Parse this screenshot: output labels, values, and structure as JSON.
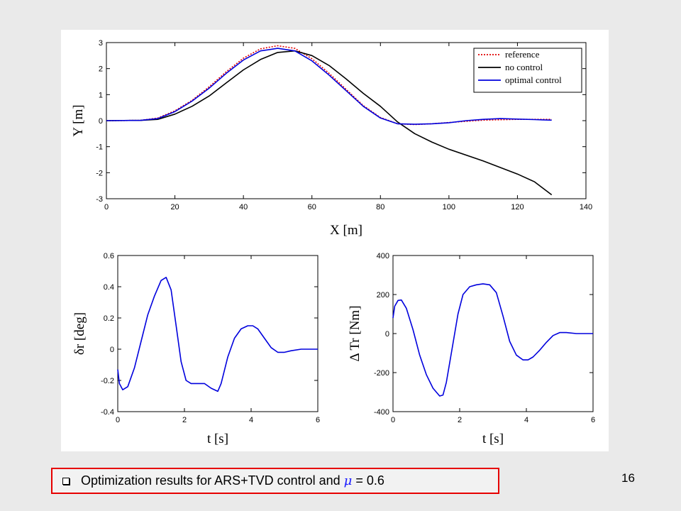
{
  "slide": {
    "caption_prefix": "Optimization results for ARS+TVD control and",
    "caption_symbol": "μ",
    "caption_suffix": "= 0.6",
    "page_number": "16"
  },
  "chart_data": [
    {
      "type": "line",
      "xlabel": "X [m]",
      "ylabel": "Y [m]",
      "xlim": [
        0,
        140
      ],
      "ylim": [
        -3,
        3
      ],
      "xticks": [
        0,
        20,
        40,
        60,
        80,
        100,
        120,
        140
      ],
      "yticks": [
        -3,
        -2,
        -1,
        0,
        1,
        2,
        3
      ],
      "legend": "top-right",
      "series": [
        {
          "name": "reference",
          "color": "#e00000",
          "style": "dotted",
          "x": [
            0,
            10,
            15,
            20,
            25,
            30,
            35,
            40,
            45,
            50,
            55,
            60,
            65,
            70,
            75,
            80,
            85,
            90,
            95,
            100,
            110,
            120,
            125,
            130
          ],
          "y": [
            0,
            0.01,
            0.1,
            0.38,
            0.78,
            1.3,
            1.88,
            2.4,
            2.76,
            2.88,
            2.78,
            2.38,
            1.82,
            1.2,
            0.58,
            0.12,
            -0.12,
            -0.15,
            -0.12,
            -0.07,
            0.02,
            0.05,
            0.05,
            0.05
          ]
        },
        {
          "name": "no control",
          "color": "#000000",
          "style": "solid",
          "x": [
            0,
            10,
            15,
            20,
            25,
            30,
            35,
            40,
            45,
            50,
            55,
            60,
            65,
            70,
            75,
            80,
            85,
            90,
            95,
            100,
            110,
            120,
            125,
            130
          ],
          "y": [
            0,
            0.01,
            0.05,
            0.25,
            0.55,
            0.95,
            1.45,
            1.95,
            2.35,
            2.62,
            2.68,
            2.5,
            2.12,
            1.6,
            1.05,
            0.55,
            -0.05,
            -0.5,
            -0.82,
            -1.1,
            -1.55,
            -2.05,
            -2.35,
            -2.85
          ]
        },
        {
          "name": "optimal control",
          "color": "#0000dd",
          "style": "solid",
          "x": [
            0,
            10,
            15,
            20,
            25,
            30,
            35,
            40,
            45,
            50,
            55,
            60,
            65,
            70,
            75,
            80,
            85,
            90,
            95,
            100,
            105,
            110,
            115,
            120,
            125,
            130
          ],
          "y": [
            0,
            0.01,
            0.08,
            0.35,
            0.75,
            1.25,
            1.82,
            2.33,
            2.68,
            2.78,
            2.68,
            2.3,
            1.75,
            1.15,
            0.55,
            0.1,
            -0.12,
            -0.14,
            -0.12,
            -0.08,
            0.0,
            0.05,
            0.08,
            0.06,
            0.04,
            0.02
          ]
        }
      ]
    },
    {
      "type": "line",
      "xlabel": "t [s]",
      "ylabel": "δr [deg]",
      "xlim": [
        0,
        6
      ],
      "ylim": [
        -0.4,
        0.6
      ],
      "xticks": [
        0,
        2,
        4,
        6
      ],
      "yticks": [
        -0.4,
        -0.2,
        0,
        0.2,
        0.4,
        0.6
      ],
      "series": [
        {
          "color": "#0000dd",
          "style": "solid",
          "x": [
            0,
            0.05,
            0.15,
            0.3,
            0.5,
            0.7,
            0.9,
            1.1,
            1.3,
            1.45,
            1.6,
            1.75,
            1.9,
            2.05,
            2.2,
            2.4,
            2.6,
            2.8,
            3.0,
            3.1,
            3.3,
            3.5,
            3.7,
            3.9,
            4.05,
            4.2,
            4.4,
            4.6,
            4.8,
            5.0,
            5.2,
            5.5,
            6.0
          ],
          "y": [
            -0.13,
            -0.22,
            -0.26,
            -0.24,
            -0.12,
            0.05,
            0.22,
            0.34,
            0.44,
            0.46,
            0.38,
            0.15,
            -0.08,
            -0.2,
            -0.22,
            -0.22,
            -0.22,
            -0.25,
            -0.27,
            -0.22,
            -0.05,
            0.07,
            0.13,
            0.15,
            0.15,
            0.13,
            0.07,
            0.01,
            -0.02,
            -0.02,
            -0.01,
            0,
            0
          ]
        }
      ]
    },
    {
      "type": "line",
      "xlabel": "t [s]",
      "ylabel": "Δ Tr [Nm]",
      "xlim": [
        0,
        6
      ],
      "ylim": [
        -400,
        400
      ],
      "xticks": [
        0,
        2,
        4,
        6
      ],
      "yticks": [
        -400,
        -200,
        0,
        200,
        400
      ],
      "series": [
        {
          "color": "#0000dd",
          "style": "solid",
          "x": [
            0,
            0.05,
            0.15,
            0.25,
            0.4,
            0.6,
            0.8,
            1.0,
            1.2,
            1.4,
            1.5,
            1.6,
            1.8,
            1.95,
            2.1,
            2.3,
            2.5,
            2.7,
            2.9,
            3.1,
            3.3,
            3.5,
            3.7,
            3.9,
            4.05,
            4.2,
            4.4,
            4.6,
            4.8,
            5.0,
            5.2,
            5.5,
            6.0
          ],
          "y": [
            80,
            140,
            170,
            172,
            130,
            20,
            -110,
            -210,
            -280,
            -320,
            -315,
            -250,
            -50,
            100,
            200,
            240,
            250,
            255,
            250,
            210,
            90,
            -40,
            -110,
            -135,
            -135,
            -120,
            -85,
            -45,
            -10,
            5,
            5,
            0,
            0
          ]
        }
      ]
    }
  ]
}
